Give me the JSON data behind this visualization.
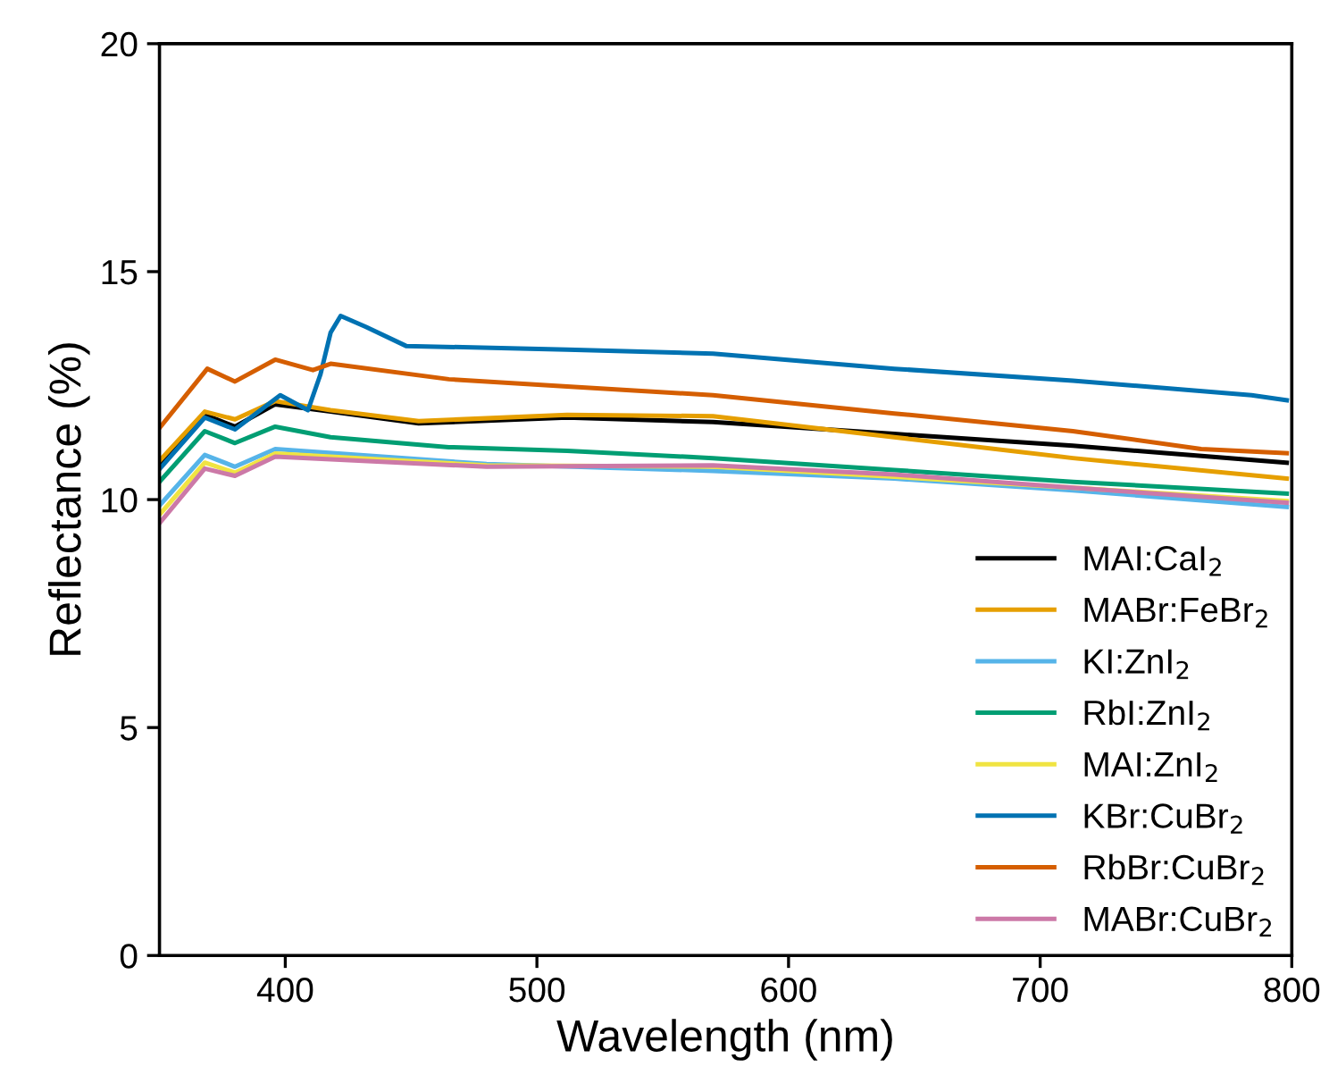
{
  "chart_data": {
    "type": "line",
    "xlabel": "Wavelength (nm)",
    "ylabel": "Reflectance (%)",
    "xlim": [
      350,
      800
    ],
    "ylim": [
      0,
      20
    ],
    "xticks": [
      400,
      500,
      600,
      700,
      800
    ],
    "yticks": [
      0,
      5,
      10,
      15,
      20
    ],
    "grid": false,
    "legend": "bottom right",
    "marker": "none",
    "line_style": "solid",
    "series": [
      {
        "name": "MAI:CaI$_{2}$",
        "color": "#000000",
        "x": [
          350,
          368,
          380,
          396,
          418,
          453,
          512,
          570,
          642,
          713,
          798
        ],
        "values": [
          10.78,
          11.86,
          11.6,
          12.09,
          11.93,
          11.67,
          11.8,
          11.7,
          11.44,
          11.18,
          10.81
        ]
      },
      {
        "name": "MABr:FeBr$_{2}$",
        "color": "#e69f00",
        "x": [
          350,
          368,
          380,
          396,
          418,
          453,
          512,
          570,
          642,
          713,
          798
        ],
        "values": [
          10.85,
          11.93,
          11.76,
          12.16,
          11.96,
          11.72,
          11.86,
          11.83,
          11.37,
          10.91,
          10.46
        ]
      },
      {
        "name": "KI:ZnI$_{2}$",
        "color": "#56b4e9",
        "x": [
          350,
          368,
          380,
          396,
          480,
          570,
          642,
          713,
          798
        ],
        "values": [
          9.87,
          10.98,
          10.72,
          11.11,
          10.78,
          10.63,
          10.46,
          10.2,
          9.84
        ]
      },
      {
        "name": "RbI:ZnI$_{2}$",
        "color": "#009e73",
        "x": [
          350,
          368,
          380,
          396,
          418,
          465,
          512,
          570,
          642,
          713,
          798
        ],
        "values": [
          10.39,
          11.5,
          11.24,
          11.6,
          11.37,
          11.15,
          11.07,
          10.91,
          10.65,
          10.39,
          10.13
        ]
      },
      {
        "name": "MAI:ZnI$_{2}$",
        "color": "#f0e442",
        "x": [
          350,
          368,
          380,
          396,
          480,
          570,
          642,
          713,
          798
        ],
        "values": [
          9.67,
          10.81,
          10.59,
          11.01,
          10.75,
          10.72,
          10.5,
          10.26,
          9.97
        ]
      },
      {
        "name": "KBr:CuBr$_{2}$",
        "color": "#0072b2",
        "x": [
          350,
          368,
          380,
          398,
          409,
          414,
          418,
          422,
          432,
          448,
          512,
          570,
          642,
          713,
          784,
          798
        ],
        "values": [
          10.67,
          11.8,
          11.54,
          12.29,
          11.96,
          12.75,
          13.66,
          14.03,
          13.79,
          13.37,
          13.29,
          13.2,
          12.87,
          12.61,
          12.29,
          12.18
        ]
      },
      {
        "name": "RbBr:CuBr$_{2}$",
        "color": "#d55e00",
        "x": [
          350,
          369,
          380,
          396,
          411,
          418,
          465,
          512,
          570,
          642,
          713,
          764,
          798
        ],
        "values": [
          11.57,
          12.87,
          12.59,
          13.07,
          12.84,
          12.98,
          12.64,
          12.48,
          12.29,
          11.89,
          11.5,
          11.11,
          11.02
        ]
      },
      {
        "name": "MABr:CuBr$_{2}$",
        "color": "#cc79a7",
        "x": [
          350,
          368,
          380,
          396,
          480,
          570,
          642,
          713,
          798
        ],
        "values": [
          9.48,
          10.68,
          10.52,
          10.94,
          10.72,
          10.75,
          10.55,
          10.26,
          9.93
        ]
      }
    ]
  }
}
